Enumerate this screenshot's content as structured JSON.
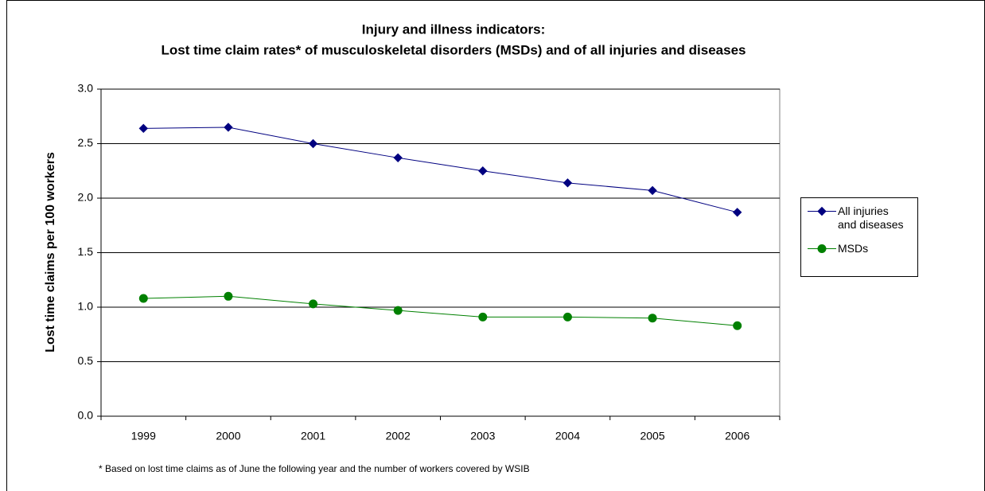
{
  "chart_data": {
    "type": "line",
    "title": "Injury and illness indicators:",
    "subtitle": "Lost time claim rates* of musculoskeletal disorders (MSDs) and of all injuries and diseases",
    "y_label": "Lost time claims per 100 workers",
    "annotation": "* Based on lost time claims as of June the following year and the number of workers covered by WSIB",
    "categories": [
      "1999",
      "2000",
      "2001",
      "2002",
      "2003",
      "2004",
      "2005",
      "2006"
    ],
    "series": [
      {
        "name": "All injuries and diseases",
        "color": "#000080",
        "marker": "diamond",
        "values": [
          2.64,
          2.65,
          2.5,
          2.37,
          2.25,
          2.14,
          2.07,
          1.87
        ]
      },
      {
        "name": "MSDs",
        "color": "#008000",
        "marker": "circle",
        "values": [
          1.08,
          1.1,
          1.03,
          0.97,
          0.91,
          0.91,
          0.9,
          0.83
        ]
      }
    ],
    "ylim": [
      0,
      3
    ],
    "yticks": [
      {
        "value": 0,
        "label": "0.0"
      },
      0.5,
      {
        "value": 1,
        "label": "1.0"
      },
      1.5,
      {
        "value": 2,
        "label": "2.0"
      },
      2.5,
      {
        "value": 3,
        "label": "3.0"
      }
    ],
    "grid": true,
    "legend": "right"
  }
}
